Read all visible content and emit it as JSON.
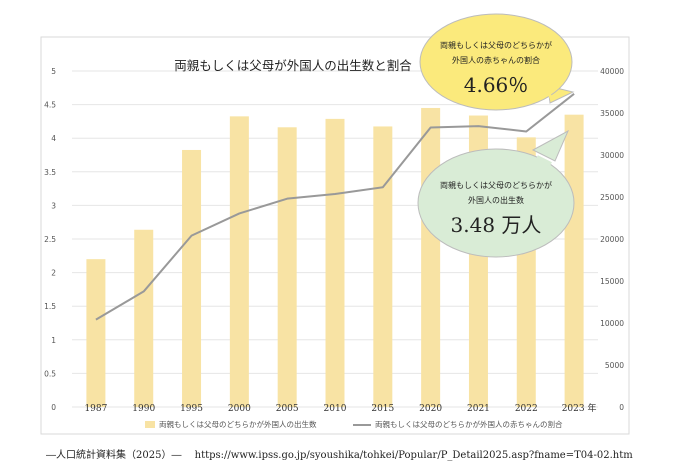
{
  "chart_data": {
    "type": "bar",
    "title": "両親もしくは父母が外国人の出生数と割合",
    "categories": [
      "1987",
      "1990",
      "1995",
      "2000",
      "2005",
      "2010",
      "2015",
      "2020",
      "2021",
      "2022",
      "2023 年"
    ],
    "y_left": {
      "ylim": [
        0,
        5
      ],
      "ticks": [
        "0",
        "0.5",
        "1",
        "1.5",
        "2",
        "2.5",
        "3",
        "3.5",
        "4",
        "4.5",
        "5"
      ]
    },
    "y_right": {
      "ylim": [
        0,
        40000
      ],
      "ticks": [
        "0",
        "5000",
        "10000",
        "15000",
        "20000",
        "25000",
        "30000",
        "35000",
        "40000"
      ]
    },
    "series": [
      {
        "name": "両親もしくは父母のどちらかが外国人の出生数",
        "type": "bar",
        "axis": "right",
        "color": "#f8e3a4",
        "values": [
          17600,
          21100,
          30600,
          34600,
          33300,
          34300,
          33400,
          35600,
          34700,
          32100,
          34800
        ]
      },
      {
        "name": "両親もしくは父母のどちらかが外国人の赤ちゃんの割合",
        "type": "line",
        "axis": "left",
        "color": "#999999",
        "values": [
          1.3,
          1.72,
          2.55,
          2.88,
          3.1,
          3.17,
          3.27,
          4.16,
          4.18,
          4.1,
          4.66
        ]
      }
    ],
    "legend_position": "bottom",
    "grid": true
  },
  "callouts": {
    "ratio": {
      "line1": "両親もしくは父母のどちらかが",
      "line2": "外国人の赤ちゃんの割合",
      "value": "4.66％",
      "color": "#fbea7c"
    },
    "births": {
      "line1": "両親もしくは父母のどちらかが",
      "line2": "外国人の出生数",
      "value": "3.48 万人",
      "color": "#d9ecd6"
    }
  },
  "footer": {
    "source": "―人口統計資料集（2025）―",
    "url": "https://www.ipss.go.jp/syoushika/tohkei/Popular/P_Detail2025.asp?fname=T04-02.htm"
  }
}
